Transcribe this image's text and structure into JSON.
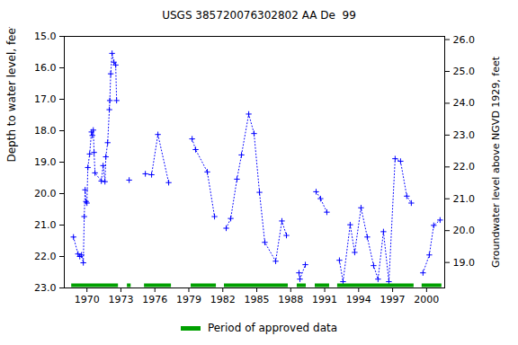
{
  "chart_data": {
    "type": "line",
    "title": "USGS 385720076302802 AA De  99",
    "y_label": "Depth to water level, feet below land surface",
    "y2_label": "Groundwater level above NGVD 1929, feet",
    "xlim": [
      1968,
      2001.6
    ],
    "xticks": [
      1970,
      1973,
      1976,
      1979,
      1982,
      1985,
      1988,
      1991,
      1994,
      1997,
      2000
    ],
    "ylim": [
      15,
      23
    ],
    "yticks": [
      {
        "value": 15,
        "label": "15.0"
      },
      {
        "value": 16,
        "label": "16.0"
      },
      {
        "value": 17,
        "label": "17.0"
      },
      {
        "value": 18,
        "label": "18.0"
      },
      {
        "value": 19,
        "label": "19.0"
      },
      {
        "value": 20,
        "label": "20.0"
      },
      {
        "value": 21,
        "label": "21.0"
      },
      {
        "value": 22,
        "label": "22.0"
      },
      {
        "value": 23,
        "label": "23.0"
      }
    ],
    "y2lim": [
      26.1,
      18.2
    ],
    "y2ticks": [
      {
        "value": 26,
        "label": "26.0"
      },
      {
        "value": 25,
        "label": "25.0"
      },
      {
        "value": 24,
        "label": "24.0"
      },
      {
        "value": 23,
        "label": "23.0"
      },
      {
        "value": 22,
        "label": "22.0"
      },
      {
        "value": 21,
        "label": "21.0"
      },
      {
        "value": 20,
        "label": "20.0"
      },
      {
        "value": 19,
        "label": "19.0"
      }
    ],
    "grid": false,
    "legend": "bottom",
    "x": [
      1968.81,
      1969.21,
      1969.37,
      1969.52,
      1969.68,
      1969.76,
      1969.84,
      1969.92,
      1970.0,
      1970.08,
      1970.24,
      1970.4,
      1970.48,
      1970.56,
      1970.63,
      1970.71,
      1971.27,
      1971.43,
      1971.59,
      1971.67,
      1971.83,
      1971.98,
      1972.02,
      1972.1,
      1972.22,
      1972.38,
      1972.54,
      1972.62,
      null,
      1973.73,
      null,
      1975.16,
      1975.71,
      1976.27,
      1977.22,
      null,
      1979.29,
      1979.6,
      1980.63,
      1981.27,
      null,
      1982.3,
      1982.7,
      1983.25,
      1983.65,
      1984.29,
      1984.76,
      1985.24,
      1985.71,
      1986.67,
      1987.22,
      1987.62,
      null,
      1988.73,
      1988.81,
      1989.29,
      null,
      1990.24,
      1990.63,
      1991.19,
      null,
      1992.3,
      1992.62,
      1993.25,
      1993.65,
      1994.21,
      1994.76,
      1995.32,
      1995.71,
      1996.19,
      1996.67,
      1997.22,
      1997.7,
      1998.25,
      1998.65,
      null,
      1999.68,
      2000.24,
      2000.63,
      2001.19
    ],
    "series": [
      {
        "color": "#0000ff",
        "marker": "plus",
        "line_style": "dotted",
        "values": [
          21.38,
          21.92,
          22.0,
          21.95,
          22.2,
          20.73,
          19.88,
          20.25,
          20.3,
          19.17,
          18.74,
          18.04,
          18.15,
          17.98,
          18.69,
          19.34,
          19.6,
          19.11,
          19.62,
          18.83,
          18.38,
          17.33,
          17.04,
          16.19,
          15.54,
          15.82,
          15.91,
          17.04,
          null,
          19.57,
          null,
          19.37,
          19.4,
          18.12,
          19.65,
          null,
          18.26,
          18.6,
          19.31,
          20.73,
          null,
          21.1,
          20.79,
          19.54,
          18.77,
          17.47,
          18.09,
          19.96,
          21.55,
          22.15,
          20.87,
          21.33,
          null,
          22.52,
          22.72,
          22.26,
          null,
          19.94,
          20.16,
          20.59,
          null,
          22.12,
          22.8,
          20.99,
          21.87,
          20.45,
          21.38,
          22.29,
          22.72,
          21.21,
          22.8,
          18.89,
          18.97,
          20.08,
          20.3,
          null,
          22.52,
          21.95,
          21.01,
          20.84
        ]
      },
      {
        "name": "Period of approved data",
        "type": "range",
        "color": "#00a000",
        "values": [
          [
            1968.65,
            1972.78
          ],
          [
            1973.57,
            1973.9
          ],
          [
            1975.08,
            1977.46
          ],
          [
            1979.2,
            1981.43
          ],
          [
            1982.14,
            1987.78
          ],
          [
            1988.57,
            1989.37
          ],
          [
            1990.16,
            1991.43
          ],
          [
            1992.14,
            1998.89
          ],
          [
            1999.6,
            2001.35
          ]
        ]
      }
    ]
  }
}
